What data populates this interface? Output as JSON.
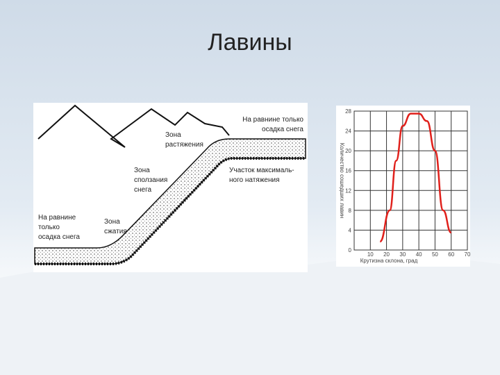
{
  "title": "Лавины",
  "diagram": {
    "labels": [
      {
        "lines": [
          "На равнине только",
          "осадка снега"
        ]
      },
      {
        "lines": [
          "Зона",
          "растяжения"
        ]
      },
      {
        "lines": [
          "Зона",
          "сползания",
          "снега"
        ]
      },
      {
        "lines": [
          "Участок максималь-",
          "ного натяжения"
        ]
      },
      {
        "lines": [
          "На равнине",
          "только",
          "осадка снега"
        ]
      },
      {
        "lines": [
          "Зона",
          "сжатия"
        ]
      }
    ]
  },
  "chart_data": {
    "type": "line",
    "x_label": "Крутизна склона, град",
    "y_label": "Количество сошедших лавин",
    "x": [
      16,
      22,
      26,
      30,
      35,
      40,
      45,
      50,
      55,
      60
    ],
    "series": [
      {
        "color": "#e0201b",
        "values": [
          1.7,
          8,
          18,
          25,
          27.5,
          27.5,
          26,
          20,
          8,
          3.5
        ]
      }
    ],
    "xlim": [
      0,
      70
    ],
    "ylim": [
      0,
      28
    ],
    "xticks": [
      10,
      20,
      30,
      40,
      50,
      60,
      70
    ],
    "yticks": [
      0,
      4,
      8,
      12,
      16,
      20,
      24,
      28
    ],
    "grid": true
  }
}
